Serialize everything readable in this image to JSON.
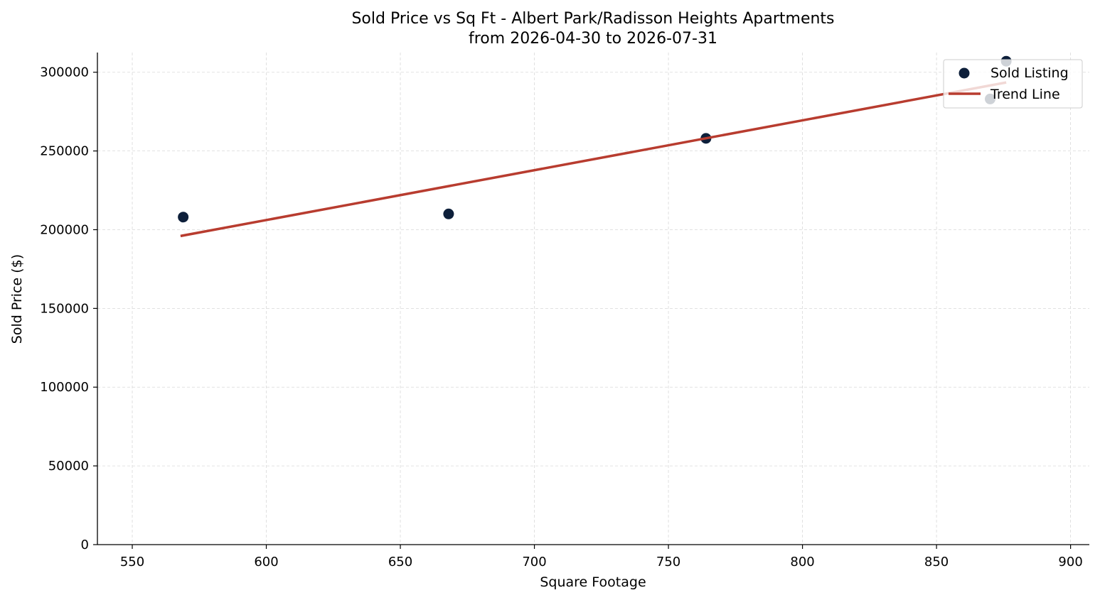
{
  "chart_data": {
    "type": "scatter",
    "title": "Sold Price vs Sq Ft - Albert Park/Radisson Heights Apartments",
    "subtitle": "from 2026-04-30 to 2026-07-31",
    "xlabel": "Square Footage",
    "ylabel": "Sold Price ($)",
    "xlim": [
      537,
      907
    ],
    "ylim": [
      0,
      312500
    ],
    "x_ticks": [
      550,
      600,
      650,
      700,
      750,
      800,
      850,
      900
    ],
    "y_ticks": [
      0,
      50000,
      100000,
      150000,
      200000,
      250000,
      300000
    ],
    "grid": true,
    "legend_position": "top-right",
    "series": [
      {
        "name": "Sold Listing",
        "type": "scatter",
        "color": "#0d1f3a",
        "points": [
          {
            "x": 569,
            "y": 208000
          },
          {
            "x": 668,
            "y": 210000
          },
          {
            "x": 764,
            "y": 258000
          },
          {
            "x": 870,
            "y": 283000
          },
          {
            "x": 876,
            "y": 307000
          }
        ]
      },
      {
        "name": "Trend Line",
        "type": "line",
        "color": "#b83c2f",
        "points": [
          {
            "x": 568,
            "y": 196000
          },
          {
            "x": 876,
            "y": 293500
          }
        ]
      }
    ]
  }
}
